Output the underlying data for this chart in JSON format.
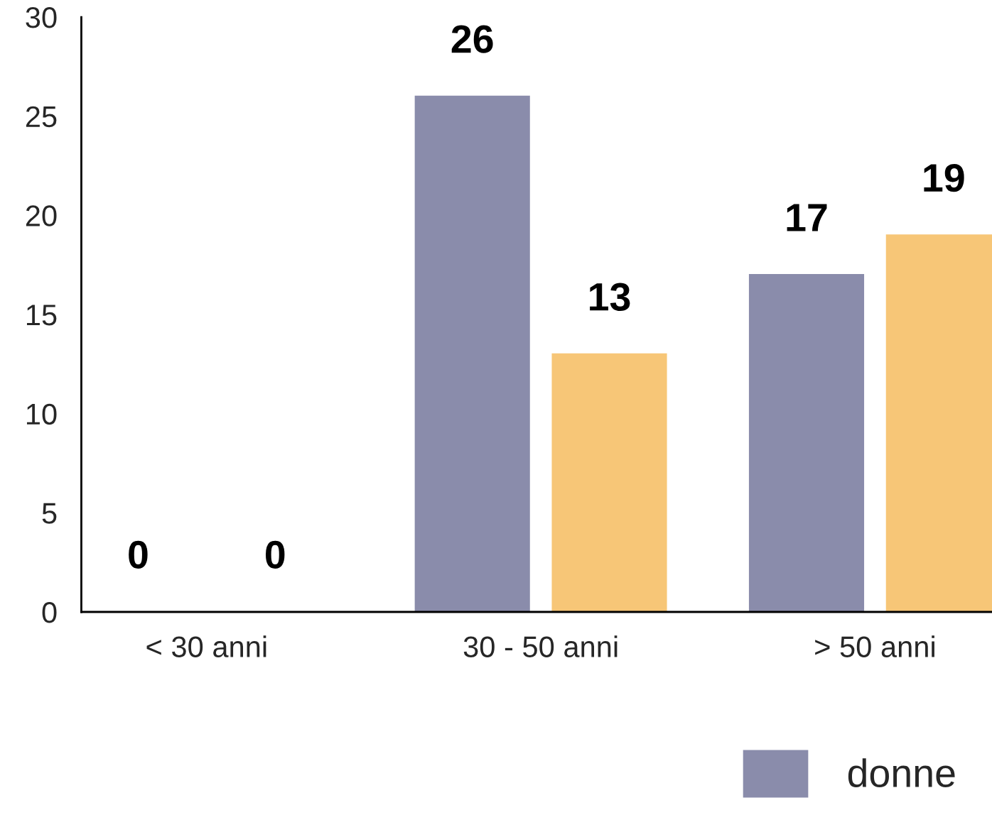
{
  "chart_data": {
    "type": "bar",
    "categories": [
      "< 30 anni",
      "30 - 50 anni",
      "> 50 anni"
    ],
    "series": [
      {
        "name": "donne",
        "color": "#8a8cab",
        "values": [
          0,
          26,
          17
        ]
      },
      {
        "color": "#f7c677",
        "values": [
          0,
          13,
          19
        ]
      }
    ],
    "ylim": [
      0,
      30
    ],
    "yticks": [
      0,
      5,
      10,
      15,
      20,
      25,
      30
    ],
    "data_labels": true,
    "grid": false,
    "legend": "bottom right"
  }
}
